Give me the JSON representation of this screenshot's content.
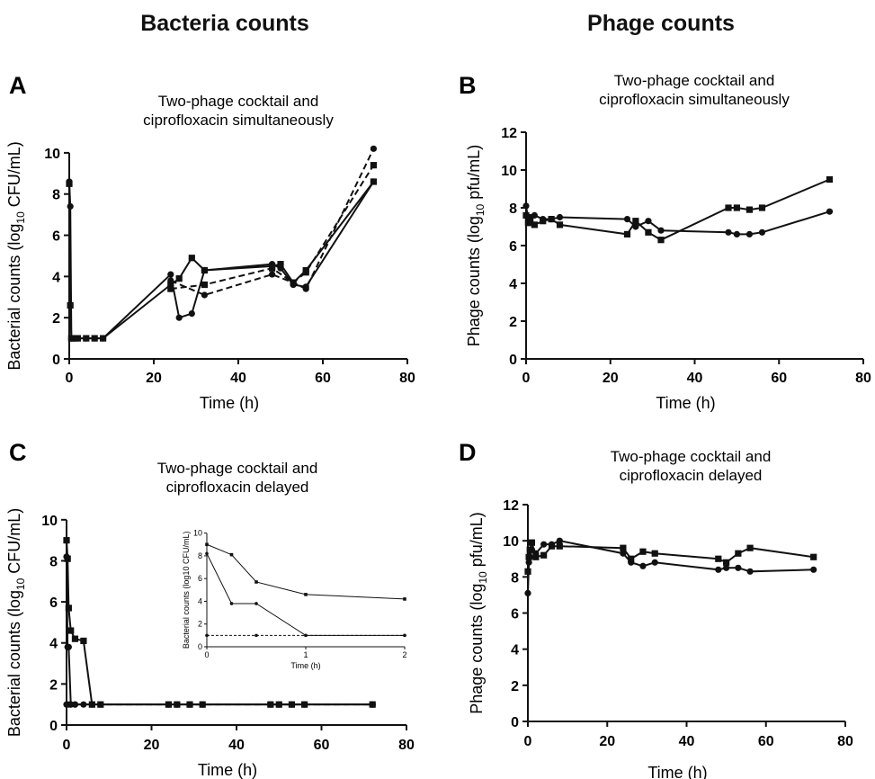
{
  "headings": {
    "left": "Bacteria counts",
    "right": "Phage counts"
  },
  "chart_data": [
    {
      "id": "A",
      "letter": "A",
      "type": "line",
      "title": [
        "Two-phage cocktail and",
        "ciprofloxacin simultaneously"
      ],
      "xlabel": "Time (h)",
      "ylabel_main": "Bacterial counts (log",
      "ylabel_sub": "10",
      "ylabel_rest": " CFU/mL)",
      "xlim": [
        0,
        80
      ],
      "ylim": [
        0,
        11
      ],
      "xticks": [
        0,
        20,
        40,
        60,
        80
      ],
      "yticks": [
        0,
        2,
        4,
        6,
        8,
        10
      ],
      "series": [
        {
          "marker": "circle",
          "dash": false,
          "x": [
            0,
            0.25,
            0.5,
            1,
            2,
            4,
            6,
            8,
            24,
            26,
            29,
            32,
            48,
            50,
            53,
            56,
            72
          ],
          "y": [
            8.6,
            7.4,
            1,
            1,
            1,
            1,
            1,
            1,
            4.1,
            2.0,
            2.2,
            4.3,
            4.6,
            4.4,
            3.6,
            3.5,
            8.6
          ]
        },
        {
          "marker": "square",
          "dash": false,
          "x": [
            0,
            0.25,
            0.5,
            1,
            2,
            4,
            6,
            8,
            24,
            26,
            29,
            32,
            48,
            50,
            53,
            56,
            72
          ],
          "y": [
            8.5,
            2.6,
            1,
            1,
            1,
            1,
            1,
            1,
            3.6,
            3.9,
            4.9,
            4.3,
            4.5,
            4.6,
            3.7,
            4.3,
            8.6
          ]
        },
        {
          "marker": "circle",
          "dash": true,
          "x": [
            24,
            32,
            48,
            53,
            56,
            72
          ],
          "y": [
            3.8,
            3.1,
            4.1,
            3.7,
            3.4,
            10.2
          ]
        },
        {
          "marker": "square",
          "dash": true,
          "x": [
            24,
            32,
            48,
            53,
            56,
            72
          ],
          "y": [
            3.4,
            3.6,
            4.4,
            3.7,
            4.2,
            9.4
          ]
        }
      ]
    },
    {
      "id": "B",
      "letter": "B",
      "type": "line",
      "title": [
        "Two-phage cocktail and",
        "ciprofloxacin simultaneously"
      ],
      "xlabel": "Time (h)",
      "ylabel_main": "Phage counts (log",
      "ylabel_sub": "10",
      "ylabel_rest": " pfu/mL)",
      "xlim": [
        0,
        80
      ],
      "ylim": [
        0,
        12
      ],
      "xticks": [
        0,
        20,
        40,
        60,
        80
      ],
      "yticks": [
        0,
        2,
        4,
        6,
        8,
        10,
        12
      ],
      "series": [
        {
          "marker": "circle",
          "dash": false,
          "x": [
            0,
            0.5,
            1,
            2,
            4,
            6,
            8,
            24,
            26,
            29,
            32,
            48,
            50,
            53,
            56,
            72
          ],
          "y": [
            8.1,
            7.4,
            7.5,
            7.6,
            7.4,
            7.4,
            7.5,
            7.4,
            7.0,
            7.3,
            6.8,
            6.7,
            6.6,
            6.6,
            6.7,
            7.8
          ]
        },
        {
          "marker": "square",
          "dash": false,
          "x": [
            0,
            0.5,
            1,
            2,
            4,
            6,
            8,
            24,
            26,
            29,
            32,
            48,
            50,
            53,
            56,
            72
          ],
          "y": [
            7.6,
            7.2,
            7.3,
            7.1,
            7.3,
            7.4,
            7.1,
            6.6,
            7.3,
            6.7,
            6.3,
            8.0,
            8.0,
            7.9,
            8.0,
            9.5
          ]
        }
      ]
    },
    {
      "id": "C",
      "letter": "C",
      "type": "line",
      "title": [
        "Two-phage cocktail and",
        "ciprofloxacin delayed"
      ],
      "xlabel": "Time (h)",
      "ylabel_main": "Bacterial counts (log",
      "ylabel_sub": "10",
      "ylabel_rest": " CFU/mL)",
      "xlim": [
        0,
        80
      ],
      "ylim": [
        0,
        11
      ],
      "xticks": [
        0,
        20,
        40,
        60,
        80
      ],
      "yticks": [
        0,
        2,
        4,
        6,
        8,
        10
      ],
      "series": [
        {
          "marker": "square",
          "dash": false,
          "x": [
            0,
            0.25,
            0.5,
            1,
            2,
            4,
            6,
            8,
            24,
            26,
            29,
            32,
            48,
            50,
            53,
            56,
            72
          ],
          "y": [
            9.0,
            8.1,
            5.7,
            4.6,
            4.2,
            4.1,
            1,
            1,
            1,
            1,
            1,
            1,
            1,
            1,
            1,
            1,
            1
          ]
        },
        {
          "marker": "circle",
          "dash": false,
          "x": [
            0,
            0.25,
            0.5,
            1,
            2,
            4,
            6,
            8,
            24,
            26,
            29,
            32,
            48,
            50,
            53,
            56,
            72
          ],
          "y": [
            8.2,
            3.8,
            3.8,
            1,
            1,
            1,
            1,
            1,
            1,
            1,
            1,
            1,
            1,
            1,
            1,
            1,
            1
          ]
        },
        {
          "marker": "circle",
          "dash": true,
          "x": [
            0,
            0.5,
            1,
            2,
            72
          ],
          "y": [
            1,
            1,
            1,
            1,
            1
          ]
        }
      ]
    },
    {
      "id": "C-inset",
      "type": "line",
      "title": "",
      "xlabel": "Time (h)",
      "ylabel": "Bacterial counts (log10 CFU/mL)",
      "xlim": [
        0,
        2
      ],
      "ylim": [
        0,
        11
      ],
      "xticks": [
        0,
        1,
        2
      ],
      "yticks": [
        0,
        2,
        4,
        6,
        8,
        10
      ],
      "series": [
        {
          "marker": "square",
          "dash": false,
          "x": [
            0,
            0.25,
            0.5,
            1,
            2
          ],
          "y": [
            9.0,
            8.1,
            5.7,
            4.6,
            4.2
          ]
        },
        {
          "marker": "circle",
          "dash": false,
          "x": [
            0,
            0.25,
            0.5,
            1,
            2
          ],
          "y": [
            8.2,
            3.8,
            3.8,
            1,
            1
          ]
        },
        {
          "marker": "circle",
          "dash": true,
          "x": [
            0,
            0.5,
            1,
            2
          ],
          "y": [
            1,
            1,
            1,
            1
          ]
        }
      ]
    },
    {
      "id": "D",
      "letter": "D",
      "type": "line",
      "title": [
        "Two-phage cocktail and",
        "ciprofloxacin delayed"
      ],
      "xlabel": "Time (h)",
      "ylabel_main": "Phage counts (log",
      "ylabel_sub": "10",
      "ylabel_rest": " pfu/mL)",
      "xlim": [
        0,
        80
      ],
      "ylim": [
        0,
        12
      ],
      "xticks": [
        0,
        20,
        40,
        60,
        80
      ],
      "yticks": [
        0,
        2,
        4,
        6,
        8,
        10,
        12
      ],
      "series": [
        {
          "marker": "circle",
          "dash": false,
          "x": [
            0,
            0.25,
            0.5,
            1,
            2,
            4,
            6,
            8,
            24,
            26,
            29,
            32,
            48,
            50,
            53,
            56,
            72
          ],
          "y": [
            7.1,
            8.8,
            9.1,
            9.5,
            9.3,
            9.8,
            9.8,
            10.0,
            9.3,
            8.8,
            8.6,
            8.8,
            8.4,
            8.5,
            8.5,
            8.3,
            8.4
          ]
        },
        {
          "marker": "square",
          "dash": false,
          "x": [
            0,
            0.25,
            0.5,
            1,
            2,
            4,
            6,
            8,
            24,
            26,
            29,
            32,
            48,
            50,
            53,
            56,
            72
          ],
          "y": [
            8.3,
            9.1,
            9.5,
            9.9,
            9.1,
            9.2,
            9.7,
            9.7,
            9.6,
            9.0,
            9.4,
            9.3,
            9.0,
            8.8,
            9.3,
            9.6,
            9.1
          ]
        }
      ]
    }
  ]
}
